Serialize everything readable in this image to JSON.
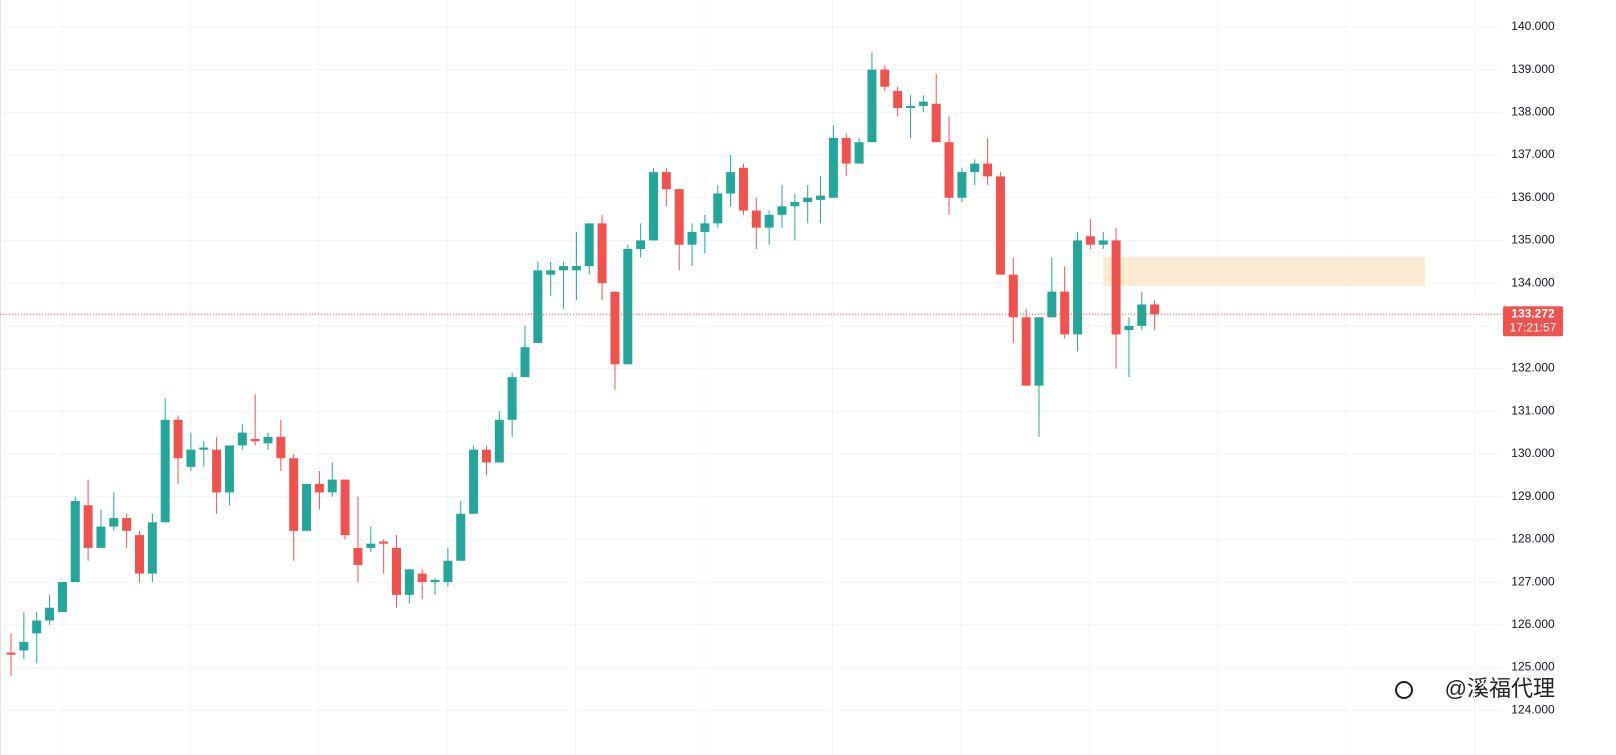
{
  "chart_data": {
    "type": "candlestick",
    "open": [
      125.35,
      125.4,
      125.8,
      126.1,
      126.3,
      127.0,
      128.8,
      127.8,
      128.3,
      128.5,
      128.1,
      127.2,
      128.4,
      130.8,
      129.7,
      130.1,
      130.1,
      129.1,
      130.2,
      130.35,
      130.25,
      130.4,
      129.9,
      128.2,
      129.3,
      129.1,
      129.4,
      127.8,
      127.8,
      127.95,
      127.8,
      126.7,
      127.2,
      127.0,
      127.0,
      127.5,
      128.6,
      130.1,
      129.8,
      130.8,
      131.8,
      132.6,
      134.2,
      134.3,
      134.3,
      134.4,
      135.4,
      133.8,
      132.1,
      134.8,
      135.0,
      136.6,
      136.2,
      134.9,
      135.2,
      135.4,
      136.1,
      136.7,
      135.7,
      135.3,
      135.6,
      135.8,
      135.9,
      135.95,
      136.0,
      137.4,
      136.8,
      137.3,
      139.0,
      138.5,
      138.1,
      138.15,
      138.2,
      137.3,
      136.0,
      136.6,
      136.8,
      136.5,
      134.2,
      133.2,
      131.6,
      133.2,
      133.8,
      132.8,
      135.1,
      134.9,
      135.0,
      132.9,
      133.0,
      133.5
    ],
    "high": [
      125.8,
      126.3,
      126.3,
      126.7,
      127.0,
      129.0,
      129.4,
      128.7,
      129.1,
      128.6,
      128.2,
      128.6,
      131.3,
      130.9,
      130.5,
      130.3,
      130.4,
      130.2,
      130.7,
      131.4,
      130.5,
      130.8,
      130.0,
      129.3,
      129.6,
      129.8,
      129.4,
      129.0,
      128.3,
      128.0,
      128.1,
      127.3,
      127.3,
      127.1,
      127.8,
      128.9,
      130.2,
      130.2,
      131.0,
      131.9,
      133.0,
      134.5,
      134.5,
      134.5,
      135.2,
      135.4,
      135.6,
      133.8,
      134.9,
      135.4,
      136.7,
      136.7,
      136.2,
      135.4,
      135.6,
      136.3,
      137.0,
      136.8,
      136.0,
      135.7,
      136.3,
      136.1,
      136.3,
      136.5,
      137.7,
      137.5,
      137.4,
      139.4,
      139.1,
      138.6,
      138.4,
      138.4,
      138.9,
      137.9,
      136.7,
      136.9,
      137.4,
      136.6,
      134.6,
      133.4,
      133.2,
      134.6,
      134.4,
      135.2,
      135.5,
      135.2,
      135.3,
      133.2,
      133.8,
      133.6
    ],
    "low": [
      124.8,
      125.2,
      125.1,
      126.0,
      126.3,
      127.0,
      127.5,
      127.8,
      128.2,
      127.8,
      127.0,
      127.0,
      128.4,
      129.3,
      129.6,
      129.7,
      128.6,
      128.8,
      130.1,
      130.2,
      130.1,
      129.6,
      127.5,
      128.2,
      128.7,
      129.0,
      128.0,
      127.0,
      127.7,
      127.2,
      126.4,
      126.5,
      126.6,
      126.7,
      126.9,
      127.5,
      128.6,
      129.5,
      129.8,
      130.4,
      131.8,
      132.6,
      133.7,
      133.4,
      133.6,
      134.2,
      133.6,
      131.5,
      132.1,
      134.6,
      135.0,
      135.8,
      134.3,
      134.4,
      134.7,
      135.3,
      135.8,
      135.6,
      134.8,
      134.9,
      135.3,
      135.0,
      135.4,
      135.4,
      136.0,
      136.5,
      136.8,
      137.3,
      138.5,
      137.9,
      137.4,
      138.0,
      137.3,
      135.6,
      135.9,
      136.3,
      136.3,
      134.2,
      132.6,
      131.6,
      130.4,
      133.2,
      132.7,
      132.4,
      134.8,
      134.8,
      132.0,
      131.8,
      132.9,
      132.9
    ],
    "close": [
      125.3,
      125.6,
      126.1,
      126.4,
      127.0,
      128.9,
      127.8,
      128.3,
      128.5,
      128.2,
      127.2,
      128.4,
      130.8,
      129.9,
      130.1,
      130.15,
      129.1,
      130.2,
      130.5,
      130.3,
      130.4,
      129.9,
      128.2,
      129.3,
      129.1,
      129.4,
      128.1,
      127.4,
      127.9,
      127.9,
      126.7,
      127.3,
      127.0,
      127.05,
      127.5,
      128.6,
      130.1,
      129.8,
      130.8,
      131.8,
      132.5,
      134.3,
      134.3,
      134.4,
      134.4,
      135.4,
      134.0,
      132.1,
      134.8,
      135.0,
      136.6,
      136.2,
      134.9,
      135.2,
      135.4,
      136.1,
      136.6,
      135.7,
      135.3,
      135.6,
      135.8,
      135.9,
      136.0,
      136.05,
      137.4,
      136.8,
      137.3,
      139.0,
      138.6,
      138.1,
      138.15,
      138.25,
      137.3,
      136.0,
      136.6,
      136.8,
      136.5,
      134.2,
      133.2,
      131.6,
      133.2,
      133.8,
      132.8,
      135.0,
      134.9,
      135.0,
      132.8,
      133.0,
      133.5,
      133.27
    ],
    "up_color": "#26a69a",
    "down_color": "#ef5350",
    "ylim": [
      123.49,
      140.63
    ],
    "yticks": [
      {
        "value": 124,
        "label": "124.000"
      },
      {
        "value": 125,
        "label": "125.000"
      },
      {
        "value": 126,
        "label": "126.000"
      },
      {
        "value": 127,
        "label": "127.000"
      },
      {
        "value": 128,
        "label": "128.000"
      },
      {
        "value": 129,
        "label": "129.000"
      },
      {
        "value": 130,
        "label": "130.000"
      },
      {
        "value": 131,
        "label": "131.000"
      },
      {
        "value": 132,
        "label": "132.000"
      },
      {
        "value": 133,
        "label": "133.000"
      },
      {
        "value": 134,
        "label": "134.000"
      },
      {
        "value": 135,
        "label": "135.000"
      },
      {
        "value": 136,
        "label": "136.000"
      },
      {
        "value": 137,
        "label": "137.000"
      },
      {
        "value": 138,
        "label": "138.000"
      },
      {
        "value": 139,
        "label": "139.000"
      },
      {
        "value": 140,
        "label": "140.000"
      }
    ],
    "grid": true,
    "last_price": {
      "value": 133.272,
      "label": "133.272"
    },
    "countdown": "17:21:57",
    "zone": {
      "start_index": 85,
      "low": 133.93,
      "high": 134.62,
      "color": "#fdebd3"
    },
    "watermark": "@溪福代理"
  }
}
